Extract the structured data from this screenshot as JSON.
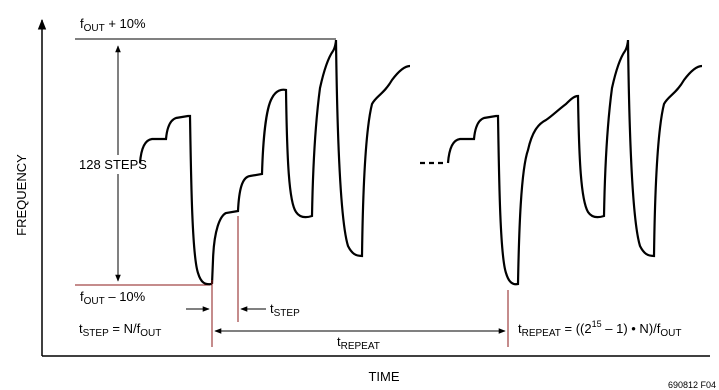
{
  "axes": {
    "y_label": "FREQUENCY",
    "x_label": "TIME"
  },
  "annotations": {
    "f_top_base": "f",
    "f_top_sub": "OUT",
    "f_top_rest": " + 10%",
    "f_bot_base": "f",
    "f_bot_sub": "OUT",
    "f_bot_rest": " – 10%",
    "steps": "128 STEPS",
    "dash_gap": "- - -",
    "tstep_base": "t",
    "tstep_sub": "STEP",
    "tstep_eq_base": "t",
    "tstep_eq_sub": "STEP",
    "tstep_eq_mid": " = N/f",
    "tstep_eq_sub2": "OUT",
    "trepeat_base": "t",
    "trepeat_sub": "REPEAT",
    "trep_eq_base": "t",
    "trep_eq_sub": "REPEAT",
    "trep_eq_mid": " = ((2",
    "trep_eq_sup": "15",
    "trep_eq_mid2": " – 1) • N)/f",
    "trep_eq_sub2": "OUT",
    "figure_id": "690812 F04"
  },
  "colors": {
    "waveform": "#000000",
    "marker": "#8b1a1a"
  }
}
